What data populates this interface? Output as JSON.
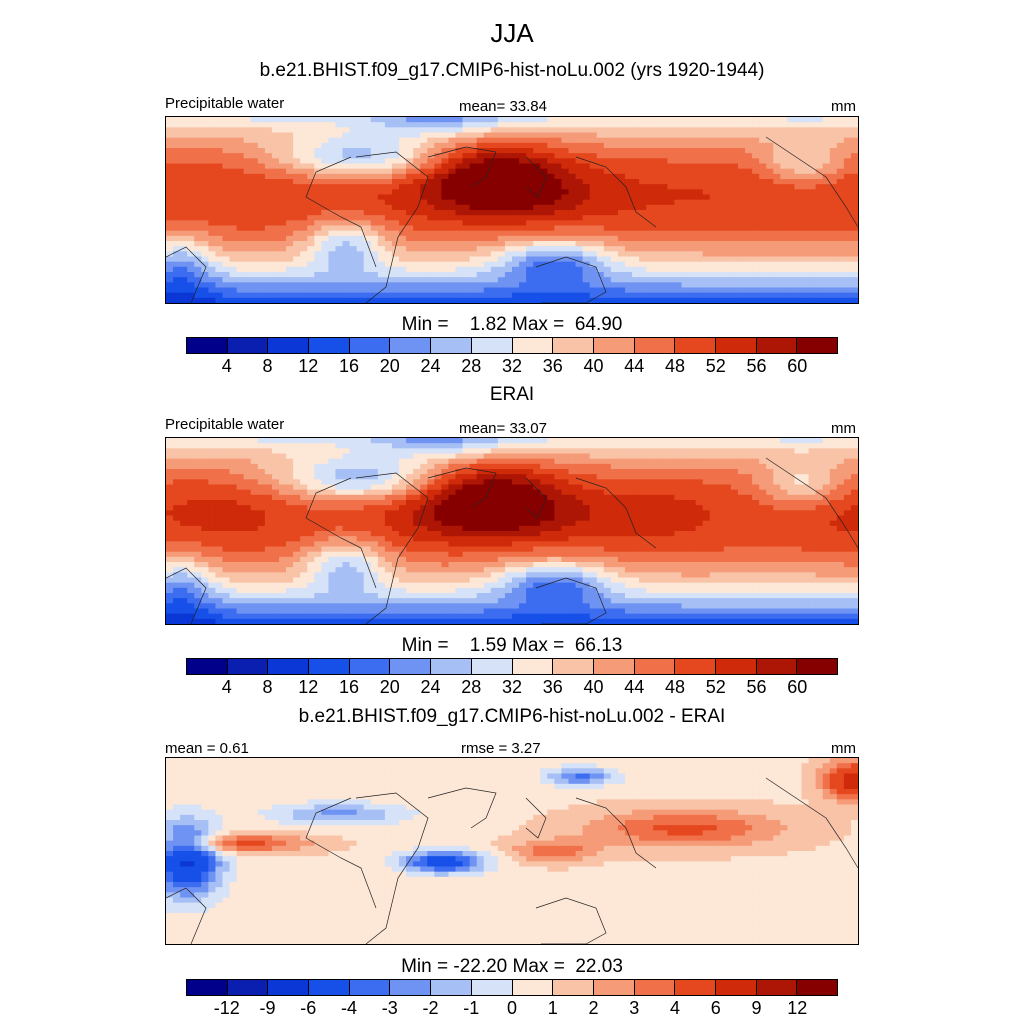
{
  "page_title": "JJA",
  "panels": [
    {
      "heading": "b.e21.BHIST.f09_g17.CMIP6-hist-noLu.002 (yrs 1920-1944)",
      "left_label": "Precipitable water",
      "center_label": "mean=  33.84",
      "right_label": "mm",
      "minmax": "Min =    1.82 Max =  64.90",
      "colorbar": "abs",
      "range": [
        1.82,
        64.9
      ]
    },
    {
      "heading": "ERAI",
      "left_label": "Precipitable water",
      "center_label": "mean=  33.07",
      "right_label": "mm",
      "minmax": "Min =    1.59 Max =  66.13",
      "colorbar": "abs",
      "range": [
        1.59,
        66.13
      ]
    },
    {
      "heading": "b.e21.BHIST.f09_g17.CMIP6-hist-noLu.002 - ERAI",
      "left_label": "mean =   0.61",
      "center_label": "rmse =   3.27",
      "right_label": "mm",
      "minmax": "Min = -22.20 Max =  22.03",
      "colorbar": "diff",
      "range": [
        -22.2,
        22.03
      ]
    }
  ],
  "colorbars": {
    "abs": {
      "ticks": [
        "4",
        "8",
        "12",
        "16",
        "20",
        "24",
        "28",
        "32",
        "36",
        "40",
        "44",
        "48",
        "52",
        "56",
        "60"
      ],
      "colors": [
        "#00008b",
        "#0a1fb0",
        "#0a37d6",
        "#1650e8",
        "#3c6cf0",
        "#6f93f2",
        "#a6bff5",
        "#d6e2f7",
        "#fde7d6",
        "#f9c3a8",
        "#f59b78",
        "#f0704a",
        "#e5481f",
        "#cf2a0a",
        "#ad1604",
        "#870000"
      ]
    },
    "diff": {
      "ticks": [
        "-12",
        "-9",
        "-6",
        "-4",
        "-3",
        "-2",
        "-1",
        "0",
        "1",
        "2",
        "3",
        "4",
        "6",
        "9",
        "12"
      ],
      "colors": [
        "#00008b",
        "#0a1fb0",
        "#0a37d6",
        "#1650e8",
        "#3c6cf0",
        "#6f93f2",
        "#a6bff5",
        "#d6e2f7",
        "#fde7d6",
        "#f9c3a8",
        "#f59b78",
        "#f0704a",
        "#e5481f",
        "#cf2a0a",
        "#ad1604",
        "#870000"
      ]
    }
  }
}
